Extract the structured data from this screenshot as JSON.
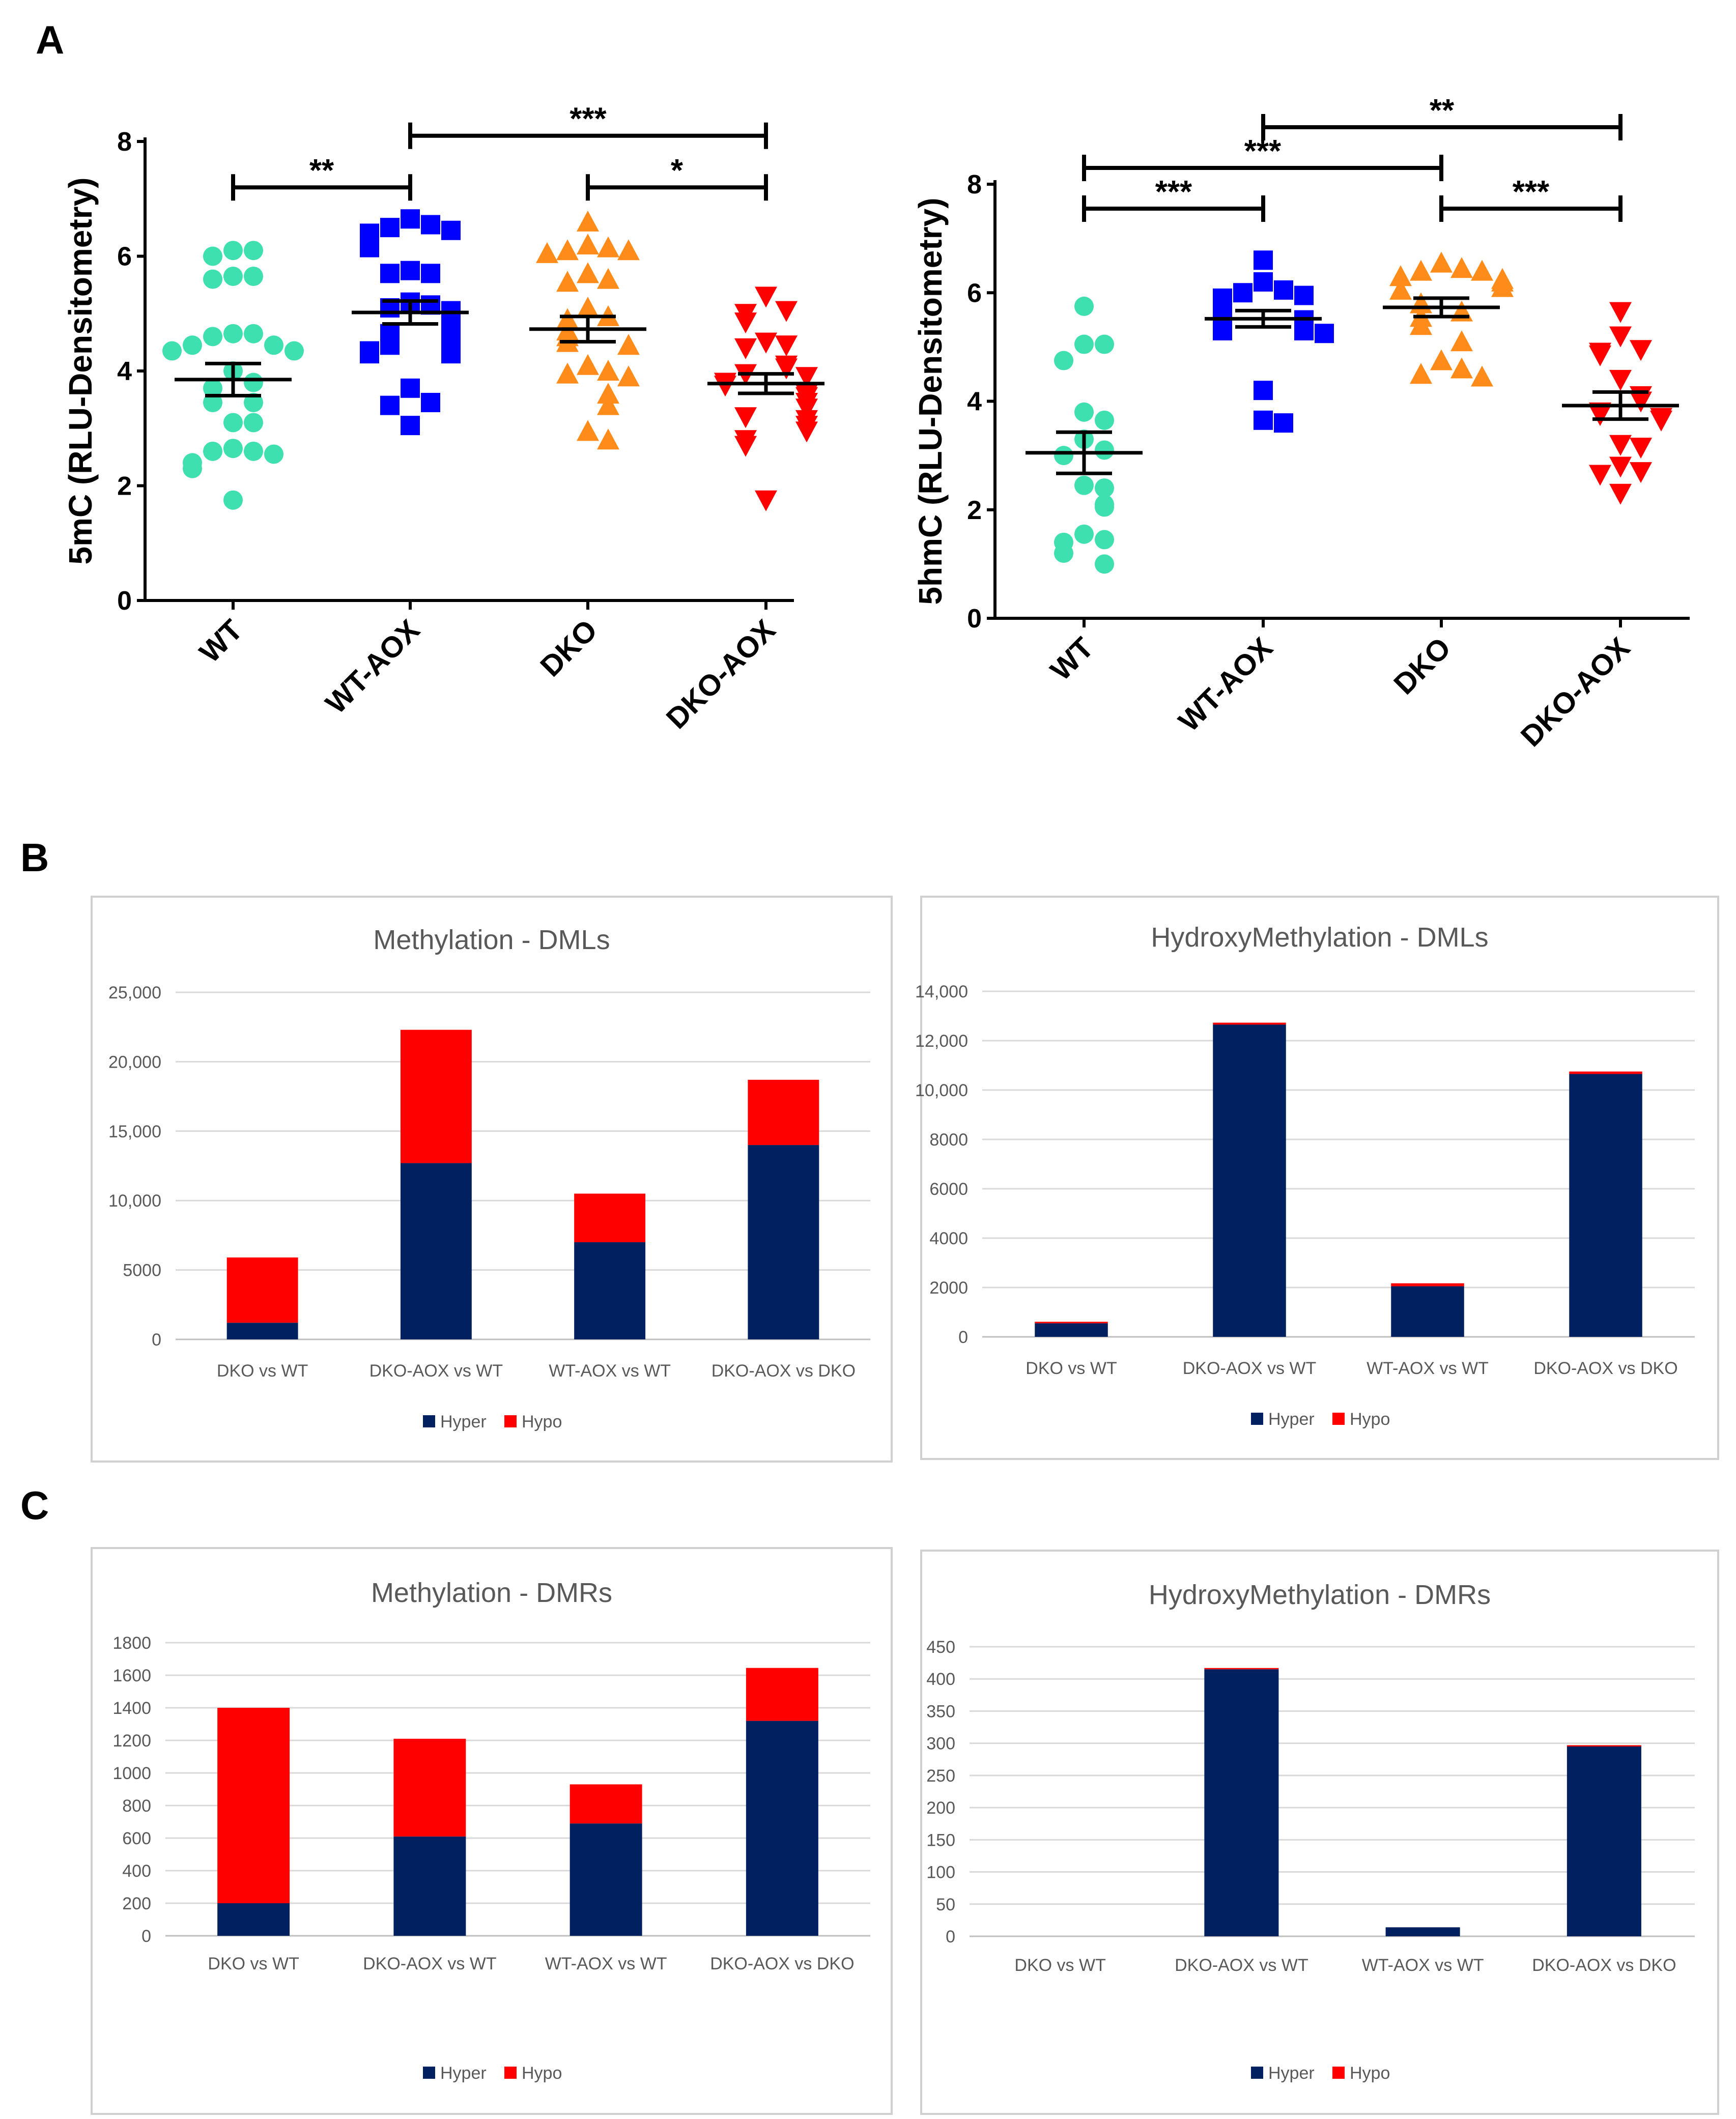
{
  "panel_labels": [
    "A",
    "B",
    "C"
  ],
  "colors": {
    "WT": "#3ee0b0",
    "WT-AOX": "#0000ff",
    "DKO": "#ff8c1a",
    "DKO-AOX": "#ff0000",
    "Hyper": "#002060",
    "Hypo": "#ff0000"
  },
  "chart_data": [
    {
      "type": "scatter",
      "title": "",
      "ylabel": "5mC (RLU-Densitometry)",
      "ylim": [
        0,
        8
      ],
      "yticks": [
        "0",
        "2",
        "4",
        "6",
        "8"
      ],
      "categories": [
        "WT",
        "WT-AOX",
        "DKO",
        "DKO-AOX"
      ],
      "groups": [
        {
          "name": "WT",
          "marker": "circle",
          "mean": 3.85,
          "sem": 0.28,
          "points": [
            6.1,
            6.1,
            6.0,
            5.65,
            5.65,
            5.6,
            4.65,
            4.65,
            4.6,
            4.45,
            4.45,
            4.35,
            4.35,
            4.0,
            3.8,
            3.7,
            3.45,
            3.45,
            3.1,
            3.1,
            2.65,
            2.6,
            2.6,
            2.55,
            2.4,
            2.3,
            1.75
          ]
        },
        {
          "name": "WT-AOX",
          "marker": "square",
          "mean": 5.02,
          "sem": 0.2,
          "points": [
            6.65,
            6.55,
            6.5,
            6.45,
            6.4,
            6.3,
            6.2,
            6.15,
            5.75,
            5.7,
            5.7,
            5.2,
            5.15,
            5.1,
            5.05,
            4.85,
            4.8,
            4.65,
            4.65,
            4.45,
            4.4,
            4.35,
            4.3,
            4.3,
            3.7,
            3.45,
            3.4,
            3.05
          ]
        },
        {
          "name": "DKO",
          "marker": "triangle-up",
          "mean": 4.73,
          "sem": 0.22,
          "points": [
            6.6,
            6.2,
            6.15,
            6.1,
            6.1,
            6.05,
            5.7,
            5.6,
            5.55,
            5.1,
            4.95,
            4.9,
            4.7,
            4.6,
            4.5,
            4.45,
            4.1,
            4.0,
            3.95,
            3.9,
            3.6,
            3.4,
            2.95,
            2.8
          ]
        },
        {
          "name": "DKO-AOX",
          "marker": "triangle-down",
          "mean": 3.78,
          "sem": 0.17,
          "points": [
            5.3,
            5.05,
            5.0,
            4.85,
            4.5,
            4.45,
            4.4,
            4.1,
            4.05,
            3.95,
            3.9,
            3.8,
            3.75,
            3.6,
            3.55,
            3.45,
            3.35,
            3.2,
            3.15,
            3.05,
            2.95,
            2.8,
            2.7,
            1.75
          ]
        }
      ],
      "significance": [
        {
          "from": "WT",
          "to": "WT-AOX",
          "label": "**",
          "y": 7.2
        },
        {
          "from": "WT-AOX",
          "to": "DKO-AOX",
          "label": "***",
          "y": 8.1
        },
        {
          "from": "DKO",
          "to": "DKO-AOX",
          "label": "*",
          "y": 7.2
        }
      ]
    },
    {
      "type": "scatter",
      "title": "",
      "ylabel": "5hmC (RLU-Densitometry)",
      "ylim": [
        0,
        8
      ],
      "yticks": [
        "0",
        "2",
        "4",
        "6",
        "8"
      ],
      "categories": [
        "WT",
        "WT-AOX",
        "DKO",
        "DKO-AOX"
      ],
      "groups": [
        {
          "name": "WT",
          "marker": "circle",
          "mean": 3.05,
          "sem": 0.38,
          "points": [
            5.75,
            5.05,
            5.05,
            4.75,
            3.8,
            3.65,
            3.3,
            3.1,
            3.0,
            2.45,
            2.4,
            2.1,
            2.05,
            1.55,
            1.45,
            1.4,
            1.2,
            1.0
          ]
        },
        {
          "name": "WT-AOX",
          "marker": "square",
          "mean": 5.52,
          "sem": 0.15,
          "points": [
            6.6,
            6.2,
            6.05,
            6.0,
            5.95,
            5.9,
            5.75,
            5.7,
            5.65,
            5.5,
            5.45,
            5.35,
            5.3,
            5.3,
            5.25,
            4.2,
            3.65,
            3.6
          ]
        },
        {
          "name": "DKO",
          "marker": "triangle-up",
          "mean": 5.73,
          "sem": 0.17,
          "points": [
            6.55,
            6.45,
            6.4,
            6.4,
            6.3,
            6.25,
            6.2,
            6.1,
            6.05,
            5.8,
            5.65,
            5.55,
            5.4,
            5.1,
            4.75,
            4.6,
            4.5,
            4.45
          ]
        },
        {
          "name": "DKO-AOX",
          "marker": "triangle-down",
          "mean": 3.92,
          "sem": 0.25,
          "points": [
            5.65,
            5.2,
            4.95,
            4.9,
            4.85,
            4.4,
            4.1,
            4.0,
            3.8,
            3.75,
            3.7,
            3.65,
            3.2,
            3.15,
            2.8,
            2.7,
            2.65,
            2.3
          ]
        }
      ],
      "significance": [
        {
          "from": "WT",
          "to": "WT-AOX",
          "label": "***",
          "y": 7.55
        },
        {
          "from": "WT",
          "to": "DKO",
          "label": "***",
          "y": 8.3
        },
        {
          "from": "WT-AOX",
          "to": "DKO-AOX",
          "label": "**",
          "y": 9.05
        },
        {
          "from": "DKO",
          "to": "DKO-AOX",
          "label": "***",
          "y": 7.55
        }
      ]
    },
    {
      "type": "bar",
      "stacked": true,
      "title": "Methylation - DMLs",
      "ylim": [
        0,
        25000
      ],
      "yticks": [
        "0",
        "5000",
        "10,000",
        "15,000",
        "20,000",
        "25,000"
      ],
      "categories": [
        "DKO vs WT",
        "DKO-AOX vs WT",
        "WT-AOX vs WT",
        "DKO-AOX vs DKO"
      ],
      "series": [
        {
          "name": "Hyper",
          "values": [
            1200,
            12700,
            7000,
            14000
          ]
        },
        {
          "name": "Hypo",
          "values": [
            4700,
            9600,
            3500,
            4700
          ]
        }
      ],
      "legend": [
        "Hyper",
        "Hypo"
      ]
    },
    {
      "type": "bar",
      "stacked": true,
      "title": "HydroxyMethylation - DMLs",
      "ylim": [
        0,
        14000
      ],
      "yticks": [
        "0",
        "2000",
        "4000",
        "6000",
        "8000",
        "10,000",
        "12,000",
        "14,000"
      ],
      "categories": [
        "DKO vs WT",
        "DKO-AOX vs WT",
        "WT-AOX vs WT",
        "DKO-AOX vs DKO"
      ],
      "series": [
        {
          "name": "Hyper",
          "values": [
            550,
            12650,
            2050,
            10650
          ]
        },
        {
          "name": "Hypo",
          "values": [
            60,
            80,
            120,
            100
          ]
        }
      ],
      "legend": [
        "Hyper",
        "Hypo"
      ]
    },
    {
      "type": "bar",
      "stacked": true,
      "title": "Methylation - DMRs",
      "ylim": [
        0,
        1800
      ],
      "yticks": [
        "0",
        "200",
        "400",
        "600",
        "800",
        "1000",
        "1200",
        "1400",
        "1600",
        "1800"
      ],
      "categories": [
        "DKO vs WT",
        "DKO-AOX vs WT",
        "WT-AOX vs WT",
        "DKO-AOX vs DKO"
      ],
      "series": [
        {
          "name": "Hyper",
          "values": [
            200,
            610,
            690,
            1320
          ]
        },
        {
          "name": "Hypo",
          "values": [
            1200,
            600,
            240,
            325
          ]
        }
      ],
      "legend": [
        "Hyper",
        "Hypo"
      ]
    },
    {
      "type": "bar",
      "stacked": true,
      "title": "HydroxyMethylation - DMRs",
      "ylim": [
        0,
        450
      ],
      "yticks": [
        "0",
        "50",
        "100",
        "150",
        "200",
        "250",
        "300",
        "350",
        "400",
        "450"
      ],
      "categories": [
        "DKO vs WT",
        "DKO-AOX vs WT",
        "WT-AOX vs WT",
        "DKO-AOX vs DKO"
      ],
      "series": [
        {
          "name": "Hyper",
          "values": [
            0,
            415,
            14,
            295
          ]
        },
        {
          "name": "Hypo",
          "values": [
            0,
            2,
            0,
            2
          ]
        }
      ],
      "legend": [
        "Hyper",
        "Hypo"
      ]
    }
  ]
}
